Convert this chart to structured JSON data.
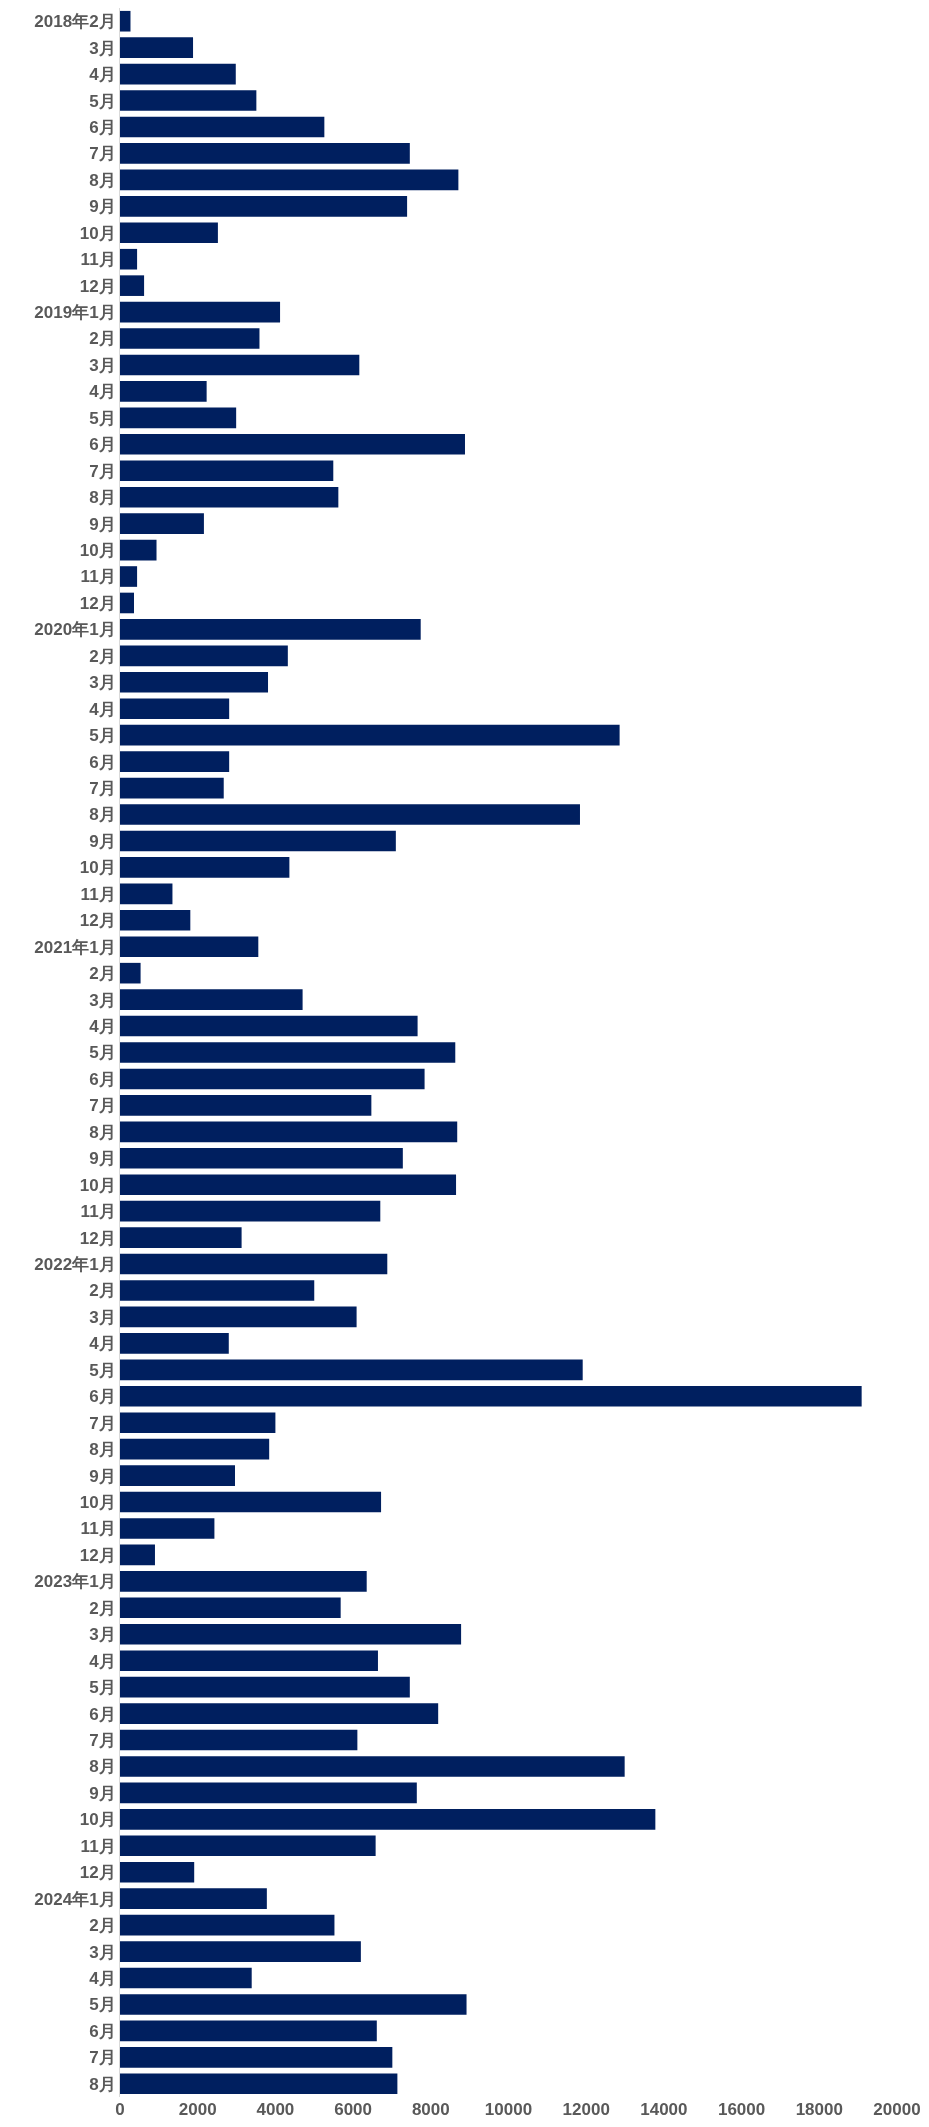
{
  "chart_data": {
    "type": "bar",
    "orientation": "horizontal",
    "color": "#001f5f",
    "categories": [
      "2018年2月",
      "3月",
      "4月",
      "5月",
      "6月",
      "7月",
      "8月",
      "9月",
      "10月",
      "11月",
      "12月",
      "2019年1月",
      "2月",
      "3月",
      "4月",
      "5月",
      "6月",
      "7月",
      "8月",
      "9月",
      "10月",
      "11月",
      "12月",
      "2020年1月",
      "2月",
      "3月",
      "4月",
      "5月",
      "6月",
      "7月",
      "8月",
      "9月",
      "10月",
      "11月",
      "12月",
      "2021年1月",
      "2月",
      "3月",
      "4月",
      "5月",
      "6月",
      "7月",
      "8月",
      "9月",
      "10月",
      "11月",
      "12月",
      "2022年1月",
      "2月",
      "3月",
      "4月",
      "5月",
      "6月",
      "7月",
      "8月",
      "9月",
      "10月",
      "11月",
      "12月",
      "2023年1月",
      "2月",
      "3月",
      "4月",
      "5月",
      "6月",
      "7月",
      "8月",
      "9月",
      "10月",
      "11月",
      "12月",
      "2024年1月",
      "2月",
      "3月",
      "4月",
      "5月",
      "6月",
      "7月",
      "8月"
    ],
    "values": [
      270,
      1880,
      2980,
      3510,
      5260,
      7460,
      8710,
      7390,
      2520,
      440,
      620,
      4120,
      3590,
      6160,
      2230,
      2990,
      8880,
      5490,
      5620,
      2160,
      940,
      440,
      360,
      7740,
      4320,
      3810,
      2810,
      12860,
      2810,
      2670,
      11840,
      7100,
      4360,
      1350,
      1810,
      3560,
      530,
      4700,
      7660,
      8630,
      7840,
      6470,
      8680,
      7280,
      8650,
      6700,
      3130,
      6880,
      5000,
      6090,
      2800,
      11910,
      19090,
      4000,
      3840,
      2960,
      6720,
      2430,
      900,
      6350,
      5680,
      8780,
      6640,
      7460,
      8190,
      6110,
      12990,
      7640,
      13780,
      6580,
      1910,
      3780,
      5520,
      6200,
      3390,
      8920,
      6610,
      7010,
      7140
    ],
    "xlim": [
      0,
      20000
    ],
    "xticks": [
      0,
      2000,
      4000,
      6000,
      8000,
      10000,
      12000,
      14000,
      16000,
      18000,
      20000
    ]
  }
}
